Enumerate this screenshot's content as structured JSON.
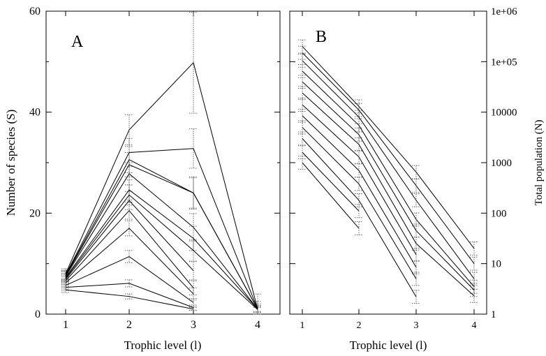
{
  "chart_data": [
    {
      "type": "line",
      "panel_label": "A",
      "xlabel": "Trophic level (l)",
      "ylabel": "Number of species (S)",
      "x": [
        1,
        2,
        3,
        4
      ],
      "xlim": [
        0.75,
        4.25
      ],
      "ylim": [
        0,
        60
      ],
      "x_ticks": [
        "1",
        "2",
        "3",
        "4"
      ],
      "y_ticks": [
        "0",
        "20",
        "40",
        "60"
      ],
      "y_tick_values": [
        0,
        20,
        40,
        60
      ],
      "y_minor_step": 10,
      "error_bars": "dotted",
      "series": [
        {
          "values": [
            4.8,
            3.5,
            1.0,
            null
          ],
          "err": [
            0.5,
            0.5,
            0.3,
            null
          ]
        },
        {
          "values": [
            5.3,
            6.1,
            1.3,
            null
          ],
          "err": [
            0.6,
            0.7,
            0.5,
            null
          ]
        },
        {
          "values": [
            5.7,
            11.4,
            2.3,
            null
          ],
          "err": [
            0.7,
            1.2,
            0.8,
            null
          ]
        },
        {
          "values": [
            6.2,
            17.0,
            4.0,
            null
          ],
          "err": [
            0.7,
            1.5,
            1.2,
            null
          ]
        },
        {
          "values": [
            6.6,
            20.5,
            5.2,
            null
          ],
          "err": [
            0.8,
            1.7,
            1.4,
            null
          ]
        },
        {
          "values": [
            6.9,
            22.5,
            8.6,
            null
          ],
          "err": [
            0.8,
            1.8,
            1.8,
            null
          ]
        },
        {
          "values": [
            7.1,
            23.6,
            12.6,
            0.9
          ],
          "err": [
            0.8,
            2.0,
            2.1,
            0.4
          ]
        },
        {
          "values": [
            7.3,
            24.6,
            15.0,
            1.0
          ],
          "err": [
            0.8,
            2.0,
            2.4,
            0.5
          ]
        },
        {
          "values": [
            7.5,
            27.8,
            17.2,
            1.0
          ],
          "err": [
            0.9,
            2.2,
            2.7,
            0.6
          ]
        },
        {
          "values": [
            7.6,
            29.6,
            24.0,
            1.0
          ],
          "err": [
            0.9,
            2.4,
            3.0,
            0.7
          ]
        },
        {
          "values": [
            7.7,
            30.6,
            24.0,
            1.0
          ],
          "err": [
            0.9,
            2.6,
            3.2,
            1.0
          ]
        },
        {
          "values": [
            7.8,
            32.0,
            32.8,
            1.0
          ],
          "err": [
            0.9,
            2.8,
            3.9,
            1.5
          ]
        },
        {
          "values": [
            8.0,
            36.5,
            49.8,
            1.0
          ],
          "err": [
            1.0,
            3.0,
            10.0,
            3.0
          ]
        }
      ]
    },
    {
      "type": "line",
      "panel_label": "B",
      "xlabel": "Trophic level (l)",
      "ylabel": "Total population (N)",
      "y_axis_side": "right",
      "y_scale": "log",
      "x": [
        1,
        2,
        3,
        4
      ],
      "xlim": [
        0.75,
        4.25
      ],
      "ylim": [
        1,
        1000000
      ],
      "x_ticks": [
        "1",
        "2",
        "3",
        "4"
      ],
      "y_ticks": [
        "1",
        "10",
        "100",
        "1000",
        "10000",
        "1e+05",
        "1e+06"
      ],
      "y_tick_values": [
        1,
        10,
        100,
        1000,
        10000,
        100000,
        1000000
      ],
      "error_bars": "dotted",
      "series": [
        {
          "values": [
            1000,
            50,
            null,
            null
          ]
        },
        {
          "values": [
            1600,
            110,
            null,
            null
          ]
        },
        {
          "values": [
            3000,
            180,
            2.2,
            null
          ]
        },
        {
          "values": [
            5000,
            380,
            5.0,
            null
          ]
        },
        {
          "values": [
            8500,
            700,
            8.5,
            null
          ]
        },
        {
          "values": [
            14000,
            1300,
            15,
            null
          ]
        },
        {
          "values": [
            24000,
            2300,
            25,
            2.3
          ]
        },
        {
          "values": [
            40000,
            3600,
            45,
            3.0
          ]
        },
        {
          "values": [
            65000,
            5500,
            75,
            3.5
          ]
        },
        {
          "values": [
            105000,
            8000,
            180,
            5.0
          ]
        },
        {
          "values": [
            150000,
            11000,
            350,
            10
          ]
        },
        {
          "values": [
            200000,
            13000,
            650,
            20
          ]
        }
      ]
    }
  ]
}
